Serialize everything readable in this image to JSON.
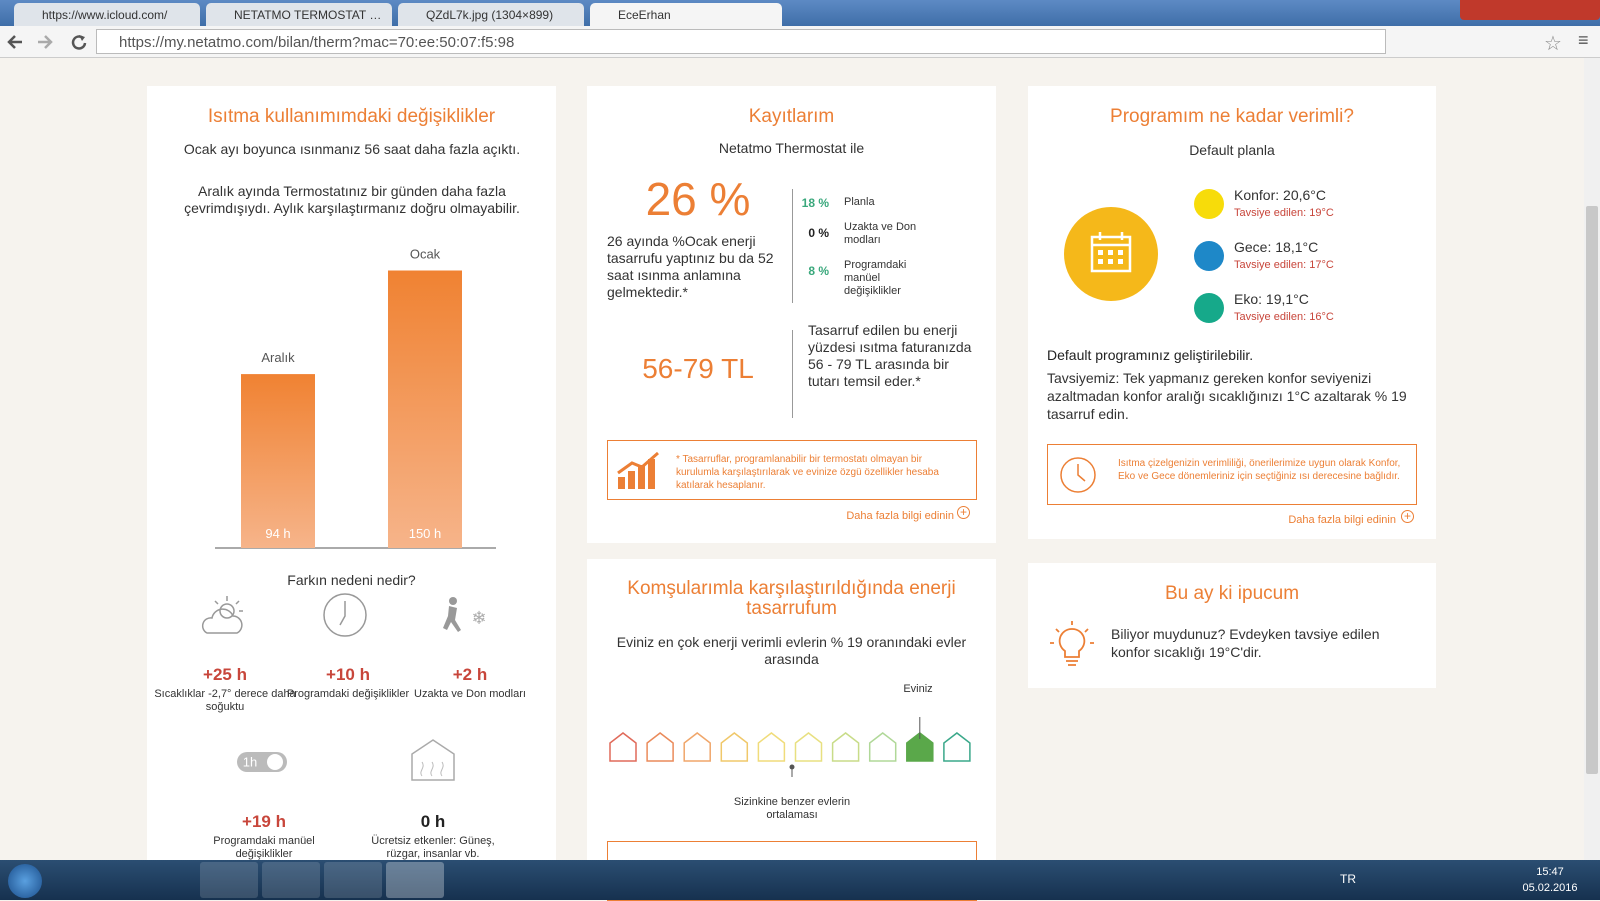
{
  "browser": {
    "tabs": [
      "https://www.icloud.com/",
      "NETATMO TERMOSTAT PA",
      "QZdL7k.jpg (1304×899)",
      "EceErhan"
    ],
    "url": "https://my.netatmo.com/bilan/therm?mac=70:ee:50:07:f5:98"
  },
  "usage": {
    "title": "Isıtma kullanımımdaki değişiklikler",
    "text1": "Ocak ayı boyunca ısınmanız 56 saat daha fazla açıktı.",
    "text2": "Aralık ayında Termostatınız bir günden daha fazla çevrimdışıydı. Aylık karşılaştırmanız doğru olmayabilir.",
    "bars": [
      {
        "label": "Aralık",
        "value": 94,
        "value_label": "94 h"
      },
      {
        "label": "Ocak",
        "value": 150,
        "value_label": "150 h"
      }
    ],
    "reason_title": "Farkın nedeni nedir?",
    "reasons": [
      {
        "value": "+25 h",
        "label": "Sıcaklıklar -2,7° derece daha soğuktu"
      },
      {
        "value": "+10 h",
        "label": "Programdaki değişiklikler"
      },
      {
        "value": "+2 h",
        "label": "Uzakta ve Don modları"
      },
      {
        "value": "+19 h",
        "label": "Programdaki manüel değişiklikler"
      },
      {
        "value": "0 h",
        "label": "Ücretsiz etkenler: Güneş, rüzgar, insanlar vb."
      }
    ],
    "switch_label": "1h"
  },
  "records": {
    "title": "Kayıtlarım",
    "subtitle": "Netatmo Thermostat ile",
    "percent": "26 %",
    "description": "26 ayında %Ocak enerji tasarrufu yaptınız bu da 52 saat ısınma anlamına gelmektedir.*",
    "breakdown": [
      {
        "value": "18 %",
        "label": "Planla"
      },
      {
        "value": "0 %",
        "label": "Uzakta ve Don modları"
      },
      {
        "value": "8 %",
        "label": "Programdaki manüel değişiklikler"
      }
    ],
    "amount": "56-79 TL",
    "amount_text": "Tasarruf edilen bu enerji yüzdesi ısıtma faturanızda 56 - 79 TL arasında bir tutarı temsil eder.*",
    "note": "* Tasarruflar, programlanabilir bir termostatı olmayan bir kurulumla karşılaştırılarak ve evinize özgü özellikler hesaba katılarak hesaplanır.",
    "more_link": "Daha fazla bilgi edinin"
  },
  "neighbors": {
    "title": "Komşularımla karşılaştırıldığında enerji tasarrufum",
    "text": "Eviniz en çok enerji verimli evlerin % 19 oranındaki evler arasında",
    "home_label": "Eviniz",
    "avg_label": "Sizinkine benzer evlerin ortalaması"
  },
  "efficiency": {
    "title": "Programım ne kadar verimli?",
    "plan": "Default planla",
    "modes": [
      {
        "name": "Konfor: 20,6°C",
        "recommended": "Tavsiye edilen: 19°C",
        "color": "#f7dc0a"
      },
      {
        "name": "Gece: 18,1°C",
        "recommended": "Tavsiye edilen: 17°C",
        "color": "#1e88c8"
      },
      {
        "name": "Eko: 19,1°C",
        "recommended": "Tavsiye edilen: 16°C",
        "color": "#16a98a"
      }
    ],
    "status": "Default programınız geliştirilebilir.",
    "advice": "Tavsiyemiz: Tek yapmanız gereken konfor seviyenizi azaltmadan konfor aralığı sıcaklığınızı 1°C azaltarak % 19 tasarruf edin.",
    "note": "Isıtma çizelgenizin verimliliği, önerilerimize uygun olarak Konfor, Eko ve Gece dönemleriniz için seçtiğiniz ısı derecesine bağlıdır.",
    "more_link": "Daha fazla bilgi edinin"
  },
  "tip": {
    "title": "Bu ay ki ipucum",
    "text": "Biliyor muydunuz? Evdeyken tavsiye edilen konfor sıcaklığı 19°C'dir."
  },
  "taskbar": {
    "lang": "TR",
    "time": "15:47",
    "date": "05.02.2016"
  }
}
